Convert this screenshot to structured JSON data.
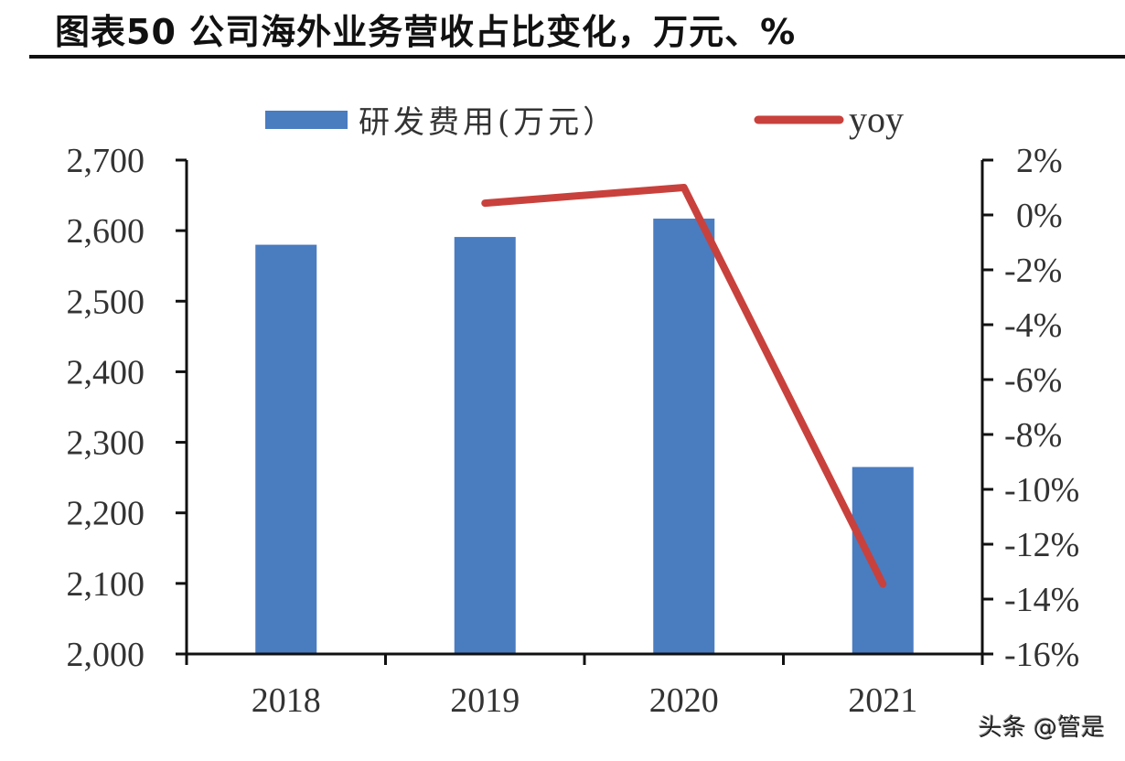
{
  "title": "图表50 公司海外业务营收占比变化，万元、%",
  "watermark": "头条 @管是",
  "colors": {
    "bar": "#4A7CC0",
    "line": "#C9413C",
    "axis": "#111111",
    "text": "#333333"
  },
  "chart_data": {
    "type": "bar+line",
    "title": "图表50 公司海外业务营收占比变化，万元、%",
    "categories": [
      "2018",
      "2019",
      "2020",
      "2021"
    ],
    "series": [
      {
        "name": "研发费用(万元）",
        "type": "bar",
        "axis": "left",
        "values": [
          2580,
          2591,
          2617,
          2265
        ]
      },
      {
        "name": "yoy",
        "type": "line",
        "axis": "right",
        "values": [
          null,
          0.43,
          1.0,
          -13.45
        ],
        "unit": "%"
      }
    ],
    "left_axis": {
      "ylim": [
        2000,
        2700
      ],
      "ticks": [
        2000,
        2100,
        2200,
        2300,
        2400,
        2500,
        2600,
        2700
      ],
      "tick_labels": [
        "2,000",
        "2,100",
        "2,200",
        "2,300",
        "2,400",
        "2,500",
        "2,600",
        "2,700"
      ]
    },
    "right_axis": {
      "ylim": [
        -16,
        2
      ],
      "ticks": [
        2,
        0,
        -2,
        -4,
        -6,
        -8,
        -10,
        -12,
        -14,
        -16
      ],
      "tick_labels": [
        "2%",
        "0%",
        "-2%",
        "-4%",
        "-6%",
        "-8%",
        "-10%",
        "-12%",
        "-14%",
        "-16%"
      ]
    },
    "xlabel": "",
    "ylabel": "",
    "grid": false,
    "legend": {
      "position": "top",
      "entries": [
        "研发费用(万元）",
        "yoy"
      ]
    }
  }
}
